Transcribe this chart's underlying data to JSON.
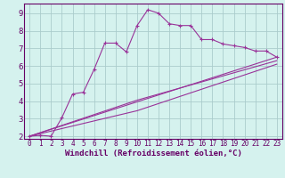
{
  "xlabel": "Windchill (Refroidissement éolien,°C)",
  "bg_color": "#d5f2ee",
  "line_color": "#993399",
  "grid_color": "#aacccc",
  "axis_color": "#660066",
  "spine_color": "#660066",
  "xlim": [
    -0.5,
    23.5
  ],
  "ylim": [
    1.85,
    9.55
  ],
  "xticks": [
    0,
    1,
    2,
    3,
    4,
    5,
    6,
    7,
    8,
    9,
    10,
    11,
    12,
    13,
    14,
    15,
    16,
    17,
    18,
    19,
    20,
    21,
    22,
    23
  ],
  "yticks": [
    2,
    3,
    4,
    5,
    6,
    7,
    8,
    9
  ],
  "series1_x": [
    0,
    1,
    2,
    3,
    4,
    5,
    6,
    7,
    8,
    9,
    10,
    11,
    12,
    13,
    14,
    15,
    16,
    17,
    18,
    19,
    20,
    21,
    22,
    23
  ],
  "series1_y": [
    2.0,
    2.05,
    2.0,
    3.05,
    4.4,
    4.5,
    5.8,
    7.3,
    7.3,
    6.8,
    8.3,
    9.2,
    9.0,
    8.4,
    8.3,
    8.3,
    7.5,
    7.5,
    7.25,
    7.15,
    7.05,
    6.85,
    6.85,
    6.5
  ],
  "series2_x": [
    0,
    23
  ],
  "series2_y": [
    2.0,
    6.5
  ],
  "series3_x": [
    0,
    10,
    23
  ],
  "series3_y": [
    2.0,
    4.05,
    6.3
  ],
  "series4_x": [
    0,
    10,
    23
  ],
  "series4_y": [
    2.0,
    3.45,
    6.1
  ],
  "xlabel_fontsize": 6.5,
  "tick_fontsize_x": 5.5,
  "tick_fontsize_y": 6.5
}
